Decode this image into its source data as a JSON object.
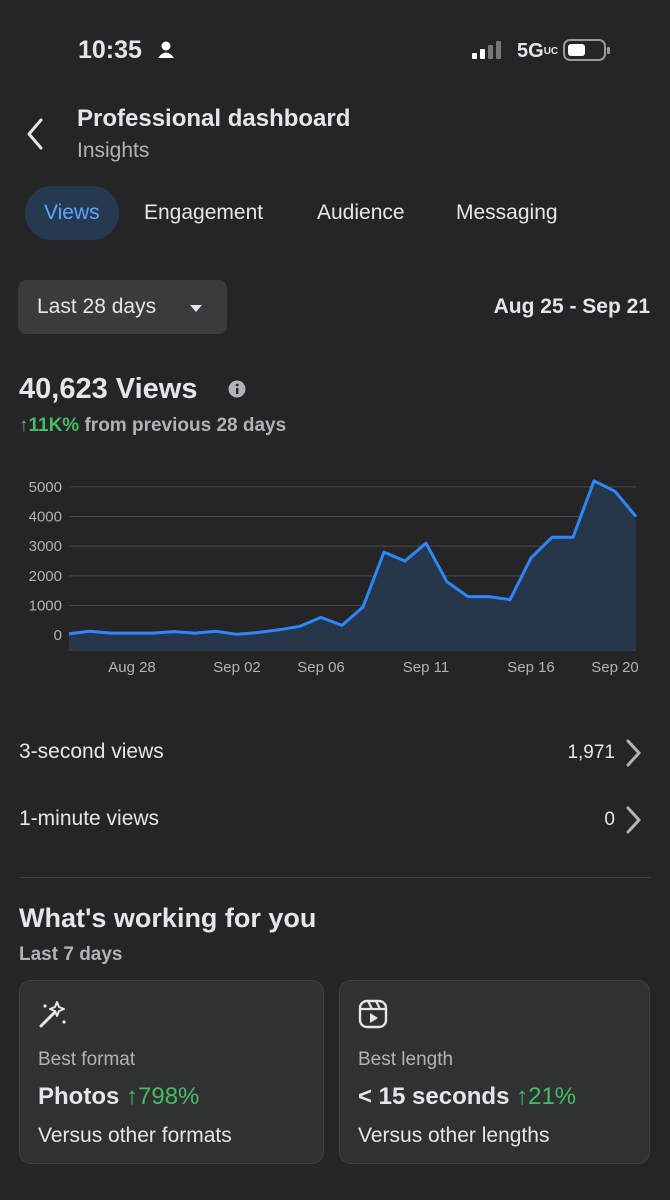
{
  "status_bar": {
    "time": "10:35",
    "network": "5G",
    "network_sub": "UC"
  },
  "header": {
    "title": "Professional dashboard",
    "subtitle": "Insights"
  },
  "tabs": [
    {
      "label": "Views",
      "selected": true
    },
    {
      "label": "Engagement",
      "selected": false
    },
    {
      "label": "Audience",
      "selected": false
    },
    {
      "label": "Messaging",
      "selected": false
    }
  ],
  "filter": {
    "label": "Last 28 days",
    "date_range": "Aug 25 - Sep 21"
  },
  "summary": {
    "total": "40,623 Views",
    "change": "↑11K%",
    "change_text": "from previous 28 days"
  },
  "chart_data": {
    "type": "line",
    "categories": [
      null,
      null,
      null,
      "Aug 28",
      null,
      null,
      null,
      null,
      "Sep 02",
      null,
      null,
      null,
      "Sep 06",
      null,
      null,
      null,
      null,
      "Sep 11",
      null,
      null,
      null,
      null,
      "Sep 16",
      null,
      null,
      null,
      "Sep 20",
      null
    ],
    "values": [
      50,
      130,
      70,
      70,
      70,
      120,
      70,
      130,
      30,
      90,
      180,
      300,
      600,
      330,
      950,
      2800,
      2500,
      3100,
      1800,
      1300,
      1300,
      1200,
      2600,
      3300,
      3300,
      5200,
      4850,
      4000
    ],
    "color": "#2d88ff",
    "area_color": "#27364b",
    "ylim": [
      -500,
      5500
    ],
    "yticks": [
      0,
      1000,
      2000,
      3000,
      4000,
      5000
    ],
    "grid": true
  },
  "metrics": [
    {
      "label": "3-second views",
      "value": "1,971"
    },
    {
      "label": "1-minute views",
      "value": "0"
    }
  ],
  "working": {
    "title": "What's working for you",
    "subtitle": "Last 7 days",
    "cards": [
      {
        "label": "Best format",
        "value": "Photos",
        "change": "↑798%",
        "note": "Versus other formats"
      },
      {
        "label": "Best length",
        "value": "< 15 seconds",
        "change": "↑21%",
        "note": "Versus other lengths"
      }
    ]
  }
}
